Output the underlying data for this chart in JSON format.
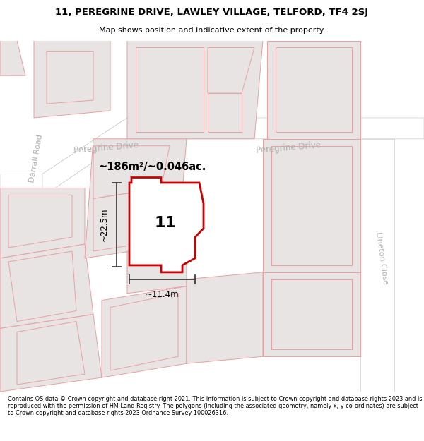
{
  "title_line1": "11, PEREGRINE DRIVE, LAWLEY VILLAGE, TELFORD, TF4 2SJ",
  "title_line2": "Map shows position and indicative extent of the property.",
  "footer_text": "Contains OS data © Crown copyright and database right 2021. This information is subject to Crown copyright and database rights 2023 and is reproduced with the permission of HM Land Registry. The polygons (including the associated geometry, namely x, y co-ordinates) are subject to Crown copyright and database rights 2023 Ordnance Survey 100026316.",
  "area_label": "~186m²/~0.046ac.",
  "number_label": "11",
  "dim_height": "~22.5m",
  "dim_width": "~11.4m",
  "map_bg": "#f2f0f0",
  "road_color": "#ffffff",
  "street_label1": "Darrall Road",
  "street_label2": "Peregrine Drive",
  "street_label3": "Peregrine Drive",
  "street_label4": "Lineton Close",
  "red_color": "#cc0000",
  "highlight_fill": "#ffffff",
  "building_fill": "#e8e4e4",
  "building_outline": "#e8a0a0",
  "plot_outline": "#e8a0a0",
  "dim_line_color": "#333333"
}
